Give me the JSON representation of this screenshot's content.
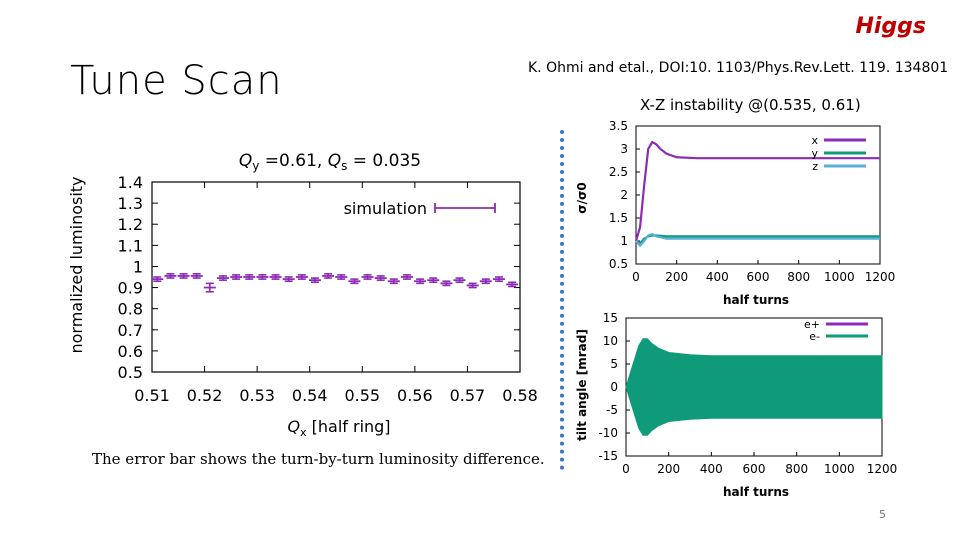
{
  "slide": {
    "title": "Tune Scan",
    "tag": "Higgs",
    "reference": "K. Ohmi and etal., DOI:10. 1103/Phys.Rev.Lett. 119. 134801",
    "xz_title": "X-Z instability @(0.535, 0.61)",
    "caption": "The error bar shows the turn-by-turn luminosity difference.",
    "page_number": "5",
    "colors": {
      "tag": "#c00000",
      "divider": "#4472c4"
    }
  },
  "chart_data": [
    {
      "id": "tune-scan",
      "type": "scatter",
      "title": "Qy =0.61, Qs = 0.035",
      "title_parts": [
        "Q",
        "y",
        " =0.61, ",
        "Q",
        "s",
        " = 0.035"
      ],
      "xlabel": "Qx [half ring]",
      "xlabel_parts": [
        "Q",
        "x",
        " [half ring]"
      ],
      "ylabel": "normalized luminosity",
      "xlim": [
        0.51,
        0.58
      ],
      "ylim": [
        0.5,
        1.4
      ],
      "xticks": [
        "0.51",
        "0.52",
        "0.53",
        "0.54",
        "0.55",
        "0.56",
        "0.57",
        "0.58"
      ],
      "yticks": [
        "0.5",
        "0.6",
        "0.7",
        "0.8",
        "0.9",
        "1",
        "1.1",
        "1.2",
        "1.3",
        "1.4"
      ],
      "legend_position": "top-right",
      "series": [
        {
          "name": "simulation",
          "color": "#8e2bb5",
          "x": [
            0.511,
            0.5135,
            0.516,
            0.5185,
            0.521,
            0.5235,
            0.526,
            0.5285,
            0.531,
            0.5335,
            0.536,
            0.5385,
            0.541,
            0.5435,
            0.546,
            0.5485,
            0.551,
            0.5535,
            0.556,
            0.5585,
            0.561,
            0.5635,
            0.566,
            0.5685,
            0.571,
            0.5735,
            0.576,
            0.5785
          ],
          "y": [
            0.94,
            0.955,
            0.955,
            0.955,
            0.9,
            0.945,
            0.95,
            0.95,
            0.95,
            0.95,
            0.94,
            0.95,
            0.935,
            0.955,
            0.95,
            0.93,
            0.95,
            0.945,
            0.93,
            0.95,
            0.93,
            0.935,
            0.92,
            0.935,
            0.91,
            0.93,
            0.94,
            0.915
          ],
          "yerr": [
            0.01,
            0.01,
            0.01,
            0.01,
            0.02,
            0.01,
            0.01,
            0.01,
            0.01,
            0.01,
            0.01,
            0.01,
            0.01,
            0.01,
            0.01,
            0.01,
            0.01,
            0.01,
            0.01,
            0.01,
            0.01,
            0.01,
            0.01,
            0.01,
            0.01,
            0.01,
            0.01,
            0.01
          ]
        }
      ]
    },
    {
      "id": "sigma-ratio",
      "type": "line",
      "xlabel": "half turns",
      "ylabel": "σ/σ0",
      "xlim": [
        0,
        1200
      ],
      "ylim": [
        0.5,
        3.5
      ],
      "xticks": [
        "0",
        "200",
        "400",
        "600",
        "800",
        "1000",
        "1200"
      ],
      "yticks": [
        "0.5",
        "1",
        "1.5",
        "2",
        "2.5",
        "3",
        "3.5"
      ],
      "legend_position": "top-right",
      "series": [
        {
          "name": "x",
          "color": "#8e2bb5",
          "x": [
            0,
            20,
            40,
            60,
            80,
            100,
            120,
            150,
            200,
            300,
            400,
            600,
            800,
            1000,
            1200
          ],
          "y": [
            1.0,
            1.3,
            2.2,
            3.0,
            3.15,
            3.1,
            3.0,
            2.9,
            2.82,
            2.8,
            2.8,
            2.8,
            2.8,
            2.8,
            2.8
          ]
        },
        {
          "name": "y",
          "color": "#0f9b7a",
          "x": [
            0,
            20,
            40,
            60,
            80,
            100,
            150,
            200,
            400,
            600,
            800,
            1000,
            1200
          ],
          "y": [
            1.0,
            0.95,
            1.05,
            1.1,
            1.12,
            1.12,
            1.1,
            1.1,
            1.1,
            1.1,
            1.1,
            1.1,
            1.1
          ]
        },
        {
          "name": "z",
          "color": "#5aaed8",
          "x": [
            0,
            20,
            40,
            60,
            80,
            100,
            150,
            200,
            400,
            600,
            800,
            1000,
            1200
          ],
          "y": [
            1.0,
            0.9,
            1.0,
            1.12,
            1.15,
            1.1,
            1.05,
            1.05,
            1.05,
            1.05,
            1.05,
            1.05,
            1.05
          ]
        }
      ]
    },
    {
      "id": "tilt-angle",
      "type": "area",
      "xlabel": "half turns",
      "ylabel": "tilt angle [mrad]",
      "xlim": [
        0,
        1200
      ],
      "ylim": [
        -15,
        15
      ],
      "xticks": [
        "0",
        "200",
        "400",
        "600",
        "800",
        "1000",
        "1200"
      ],
      "yticks": [
        "-15",
        "-10",
        "-5",
        "0",
        "5",
        "10",
        "15"
      ],
      "legend_position": "top-right",
      "series": [
        {
          "name": "e+",
          "color": "#8e2bb5",
          "x": [
            0,
            20,
            40,
            60,
            80,
            100,
            120,
            150,
            200,
            300,
            400,
            600,
            800,
            1000,
            1200
          ],
          "y": [
            0,
            3,
            6,
            9,
            10.5,
            10.5,
            9.5,
            8.5,
            7.5,
            7,
            6.8,
            6.8,
            6.8,
            6.8,
            6.8
          ]
        },
        {
          "name": "e-",
          "color": "#0f9b7a",
          "x": [
            0,
            20,
            40,
            60,
            80,
            100,
            120,
            150,
            200,
            300,
            400,
            600,
            800,
            1000,
            1200
          ],
          "y": [
            0,
            -3,
            -6,
            -9,
            -10.5,
            -10.5,
            -9.5,
            -8.5,
            -7.5,
            -7,
            -6.8,
            -6.8,
            -6.8,
            -6.8,
            -6.8
          ]
        }
      ]
    }
  ]
}
